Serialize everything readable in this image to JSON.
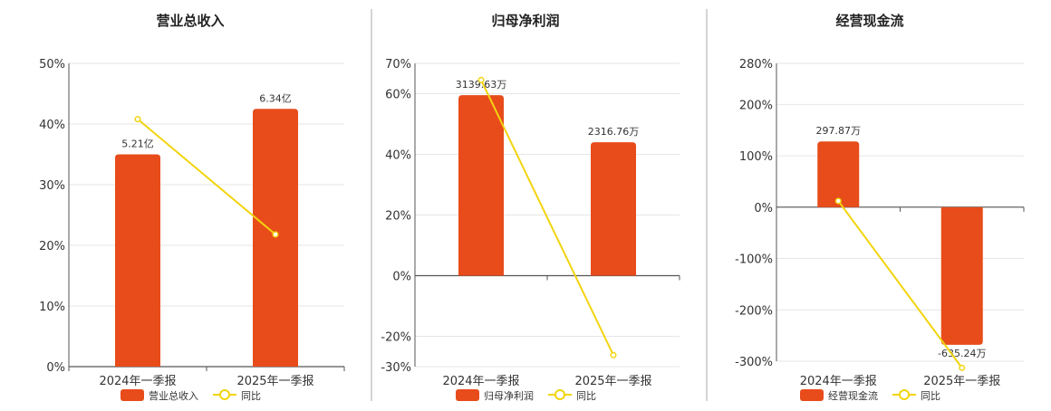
{
  "colors": {
    "bar": "#E84C1B",
    "line": "#F2D40F",
    "grid": "#E6E6E6",
    "axis": "#555555",
    "divider": "#AAAAAA"
  },
  "chart_data": [
    {
      "type": "bar",
      "title": "营业总收入",
      "categories": [
        "2024年一季报",
        "2025年一季报"
      ],
      "series": [
        {
          "name": "营业总收入",
          "type": "bar",
          "values": [
            35.0,
            42.5
          ],
          "labels": [
            "5.21亿",
            "6.34亿"
          ]
        },
        {
          "name": "同比",
          "type": "line",
          "values": [
            40.8,
            21.8
          ]
        }
      ],
      "ylim": [
        0,
        50
      ],
      "yticks": [
        0,
        10,
        20,
        30,
        40,
        50
      ],
      "ytick_labels": [
        "0%",
        "10%",
        "20%",
        "30%",
        "40%",
        "50%"
      ],
      "grid": true,
      "legend": "bottom"
    },
    {
      "type": "bar",
      "title": "归母净利润",
      "categories": [
        "2024年一季报",
        "2025年一季报"
      ],
      "series": [
        {
          "name": "归母净利润",
          "type": "bar",
          "values": [
            59.5,
            44.0
          ],
          "labels": [
            "3139.63万",
            "2316.76万"
          ]
        },
        {
          "name": "同比",
          "type": "line",
          "values": [
            64.5,
            -26.2
          ]
        }
      ],
      "ylim": [
        -30,
        70
      ],
      "yticks": [
        -30,
        -20,
        0,
        20,
        40,
        60,
        70
      ],
      "ytick_labels": [
        "-30%",
        "-20%",
        "0%",
        "20%",
        "40%",
        "60%",
        "70%"
      ],
      "grid": true,
      "legend": "bottom"
    },
    {
      "type": "bar",
      "title": "经营现金流",
      "categories": [
        "2024年一季报",
        "2025年一季报"
      ],
      "series": [
        {
          "name": "经营现金流",
          "type": "bar",
          "values": [
            128,
            -268
          ],
          "labels": [
            "297.87万",
            "-635.24万"
          ]
        },
        {
          "name": "同比",
          "type": "line",
          "values": [
            12,
            -313
          ]
        }
      ],
      "ylim": [
        -300,
        280
      ],
      "yticks": [
        -300,
        -200,
        -100,
        0,
        100,
        200,
        280
      ],
      "ytick_labels": [
        "-300%",
        "-200%",
        "-100%",
        "0%",
        "100%",
        "200%",
        "280%"
      ],
      "grid": true,
      "legend": "bottom"
    }
  ]
}
